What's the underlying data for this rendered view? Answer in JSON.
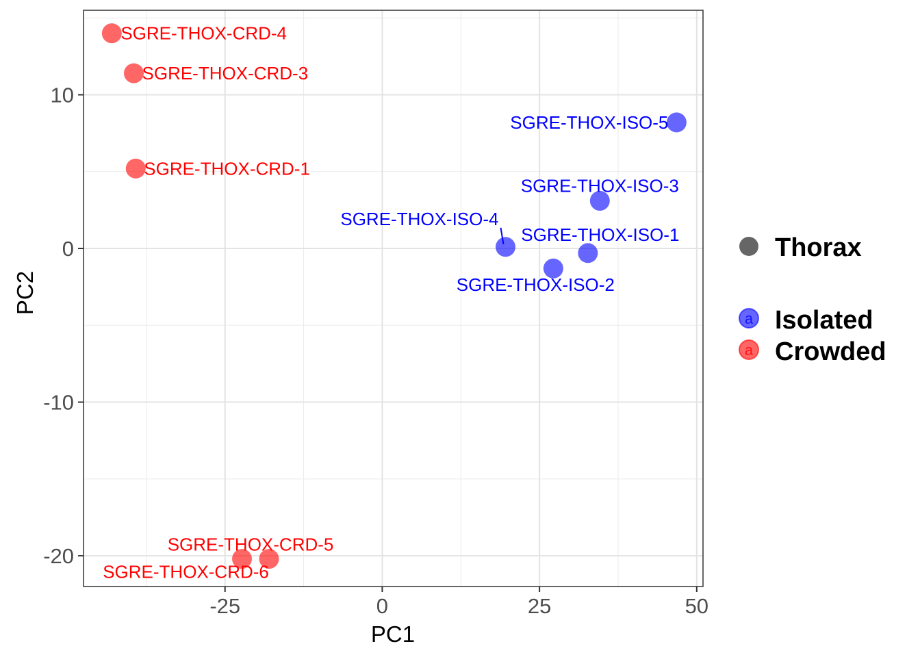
{
  "chart_data": {
    "type": "scatter",
    "xlabel": "PC1",
    "ylabel": "PC2",
    "xlim": [
      -47.5,
      51
    ],
    "ylim": [
      -22,
      15.5
    ],
    "x_ticks": [
      -25,
      0,
      25,
      50
    ],
    "x_tick_labels": [
      "-25",
      "0",
      "25",
      "50"
    ],
    "y_ticks": [
      -20,
      -10,
      0,
      10
    ],
    "y_tick_labels": [
      "-20",
      "-10",
      "0",
      "10"
    ],
    "grid": true,
    "legend_position": "right",
    "shape_legend": {
      "label": "Thorax"
    },
    "series": [
      {
        "name": "Isolated",
        "color": "#0000FF",
        "points": [
          {
            "label": "SGRE-THOX-ISO-5",
            "x": 46.8,
            "y": 8.2
          },
          {
            "label": "SGRE-THOX-ISO-3",
            "x": 34.6,
            "y": 3.1
          },
          {
            "label": "SGRE-THOX-ISO-4",
            "x": 19.6,
            "y": 0.1
          },
          {
            "label": "SGRE-THOX-ISO-1",
            "x": 32.7,
            "y": -0.3
          },
          {
            "label": "SGRE-THOX-ISO-2",
            "x": 27.2,
            "y": -1.3
          }
        ]
      },
      {
        "name": "Crowded",
        "color": "#FF0000",
        "points": [
          {
            "label": "SGRE-THOX-CRD-4",
            "x": -43.0,
            "y": 14.0
          },
          {
            "label": "SGRE-THOX-CRD-3",
            "x": -39.5,
            "y": 11.4
          },
          {
            "label": "SGRE-THOX-CRD-1",
            "x": -39.2,
            "y": 5.2
          },
          {
            "label": "SGRE-THOX-CRD-5",
            "x": -18.0,
            "y": -20.2
          },
          {
            "label": "SGRE-THOX-CRD-6",
            "x": -22.3,
            "y": -20.2
          }
        ]
      }
    ]
  },
  "legend": {
    "shape_title": "Thorax",
    "key_letter": "a",
    "items": [
      "Isolated",
      "Crowded"
    ]
  }
}
